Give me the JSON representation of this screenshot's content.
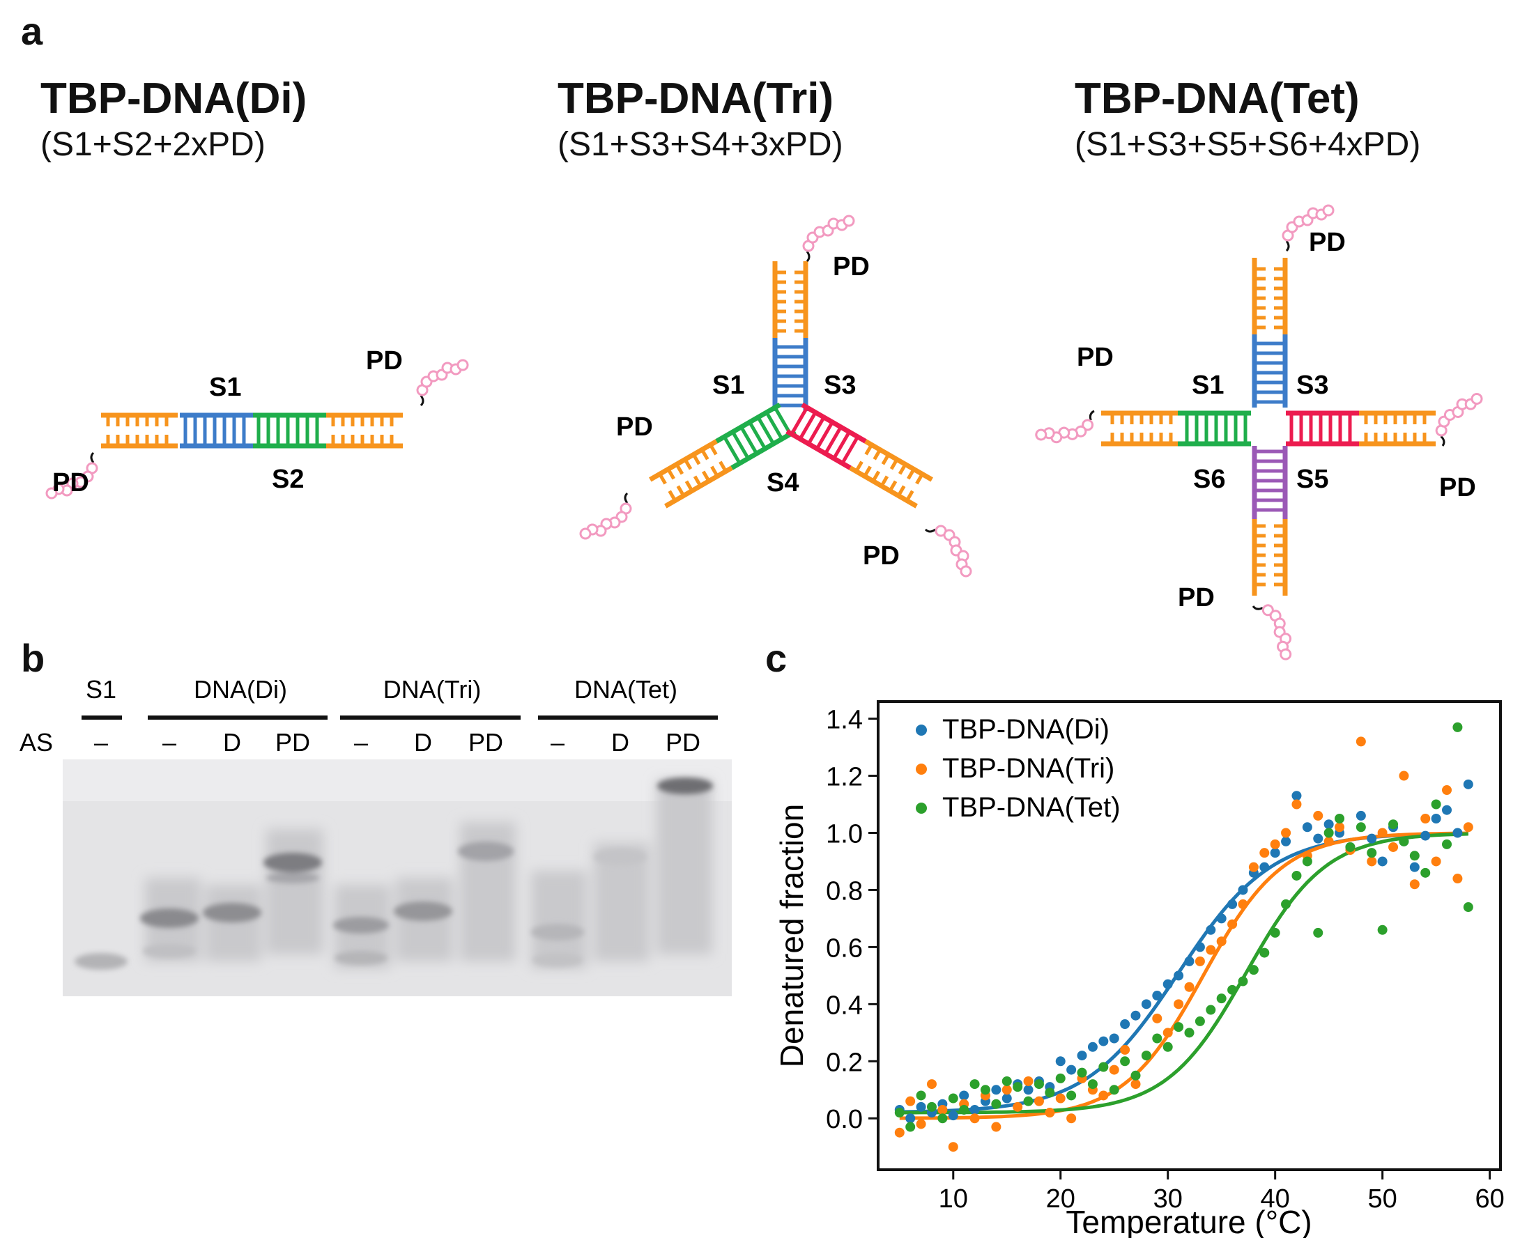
{
  "panel_a": {
    "letter": "a",
    "constructs": [
      {
        "title": "TBP-DNA(Di)",
        "subtitle": "(S1+S2+2xPD)",
        "labels": {
          "s1": "S1",
          "s2": "S2",
          "pd_top": "PD",
          "pd_bottom": "PD"
        }
      },
      {
        "title": "TBP-DNA(Tri)",
        "subtitle": "(S1+S3+S4+3xPD)",
        "labels": {
          "s1": "S1",
          "s3": "S3",
          "s4": "S4",
          "pd_top": "PD",
          "pd_left": "PD",
          "pd_right": "PD"
        }
      },
      {
        "title": "TBP-DNA(Tet)",
        "subtitle": "(S1+S3+S5+S6+4xPD)",
        "labels": {
          "s1": "S1",
          "s3": "S3",
          "s5": "S5",
          "s6": "S6",
          "pd_top": "PD",
          "pd_left": "PD",
          "pd_right": "PD",
          "pd_bottom": "PD"
        }
      }
    ]
  },
  "panel_b": {
    "letter": "b",
    "row_label": "AS",
    "groups": [
      {
        "name": "S1",
        "lanes": [
          "–"
        ]
      },
      {
        "name": "DNA(Di)",
        "lanes": [
          "–",
          "D",
          "PD"
        ]
      },
      {
        "name": "DNA(Tri)",
        "lanes": [
          "–",
          "D",
          "PD"
        ]
      },
      {
        "name": "DNA(Tet)",
        "lanes": [
          "–",
          "D",
          "PD"
        ]
      }
    ]
  },
  "panel_c": {
    "letter": "c"
  },
  "colors": {
    "orange": "#f7941d",
    "blue": "#3d7cc9",
    "green": "#1fae4b",
    "red": "#ec1c4f",
    "purple": "#9b59b6",
    "pink": "#f29ac0",
    "di": "#1f77b4",
    "tri": "#ff7f0e",
    "tet": "#2ca02c"
  },
  "chart_data": {
    "type": "scatter",
    "title": "",
    "xlabel": "Temperature (°C)",
    "ylabel": "Denatured fraction",
    "xlim": [
      3,
      61
    ],
    "ylim": [
      -0.18,
      1.46
    ],
    "xticks": [
      10,
      20,
      30,
      40,
      50,
      60
    ],
    "yticks": [
      0.0,
      0.2,
      0.4,
      0.6,
      0.8,
      1.0,
      1.2,
      1.4
    ],
    "ytick_labels": [
      "0.0",
      "0.2",
      "0.4",
      "0.6",
      "0.8",
      "1.0",
      "1.2",
      "1.4"
    ],
    "legend_position": "top-left",
    "series": [
      {
        "name": "TBP-DNA(Di)",
        "color": "#1f77b4",
        "fit": {
          "tm": 31.0,
          "k": 0.23,
          "base": 0.02,
          "top": 1.0
        },
        "x": [
          5,
          6,
          7,
          8,
          9,
          10,
          11,
          12,
          13,
          14,
          15,
          16,
          17,
          18,
          19,
          20,
          21,
          22,
          23,
          24,
          25,
          26,
          27,
          28,
          29,
          30,
          31,
          32,
          33,
          34,
          35,
          36,
          37,
          38,
          39,
          40,
          41,
          42,
          43,
          44,
          45,
          46,
          47,
          48,
          49,
          50,
          51,
          52,
          53,
          54,
          55,
          56,
          57,
          58
        ],
        "y": [
          0.03,
          0.0,
          0.04,
          0.02,
          0.05,
          0.01,
          0.08,
          0.03,
          0.06,
          0.1,
          0.07,
          0.12,
          0.1,
          0.13,
          0.11,
          0.2,
          0.17,
          0.22,
          0.25,
          0.27,
          0.28,
          0.33,
          0.36,
          0.4,
          0.43,
          0.47,
          0.5,
          0.55,
          0.6,
          0.66,
          0.7,
          0.75,
          0.8,
          0.86,
          0.88,
          0.93,
          0.97,
          1.13,
          1.02,
          0.98,
          1.03,
          1.0,
          0.95,
          1.06,
          0.98,
          0.9,
          1.02,
          0.97,
          0.88,
          0.99,
          1.05,
          1.08,
          1.0,
          1.17
        ]
      },
      {
        "name": "TBP-DNA(Tri)",
        "color": "#ff7f0e",
        "fit": {
          "tm": 33.3,
          "k": 0.27,
          "base": 0.0,
          "top": 1.0
        },
        "x": [
          5,
          6,
          7,
          8,
          9,
          10,
          11,
          12,
          13,
          14,
          15,
          16,
          17,
          18,
          19,
          20,
          21,
          22,
          23,
          24,
          25,
          26,
          27,
          28,
          29,
          30,
          31,
          32,
          33,
          34,
          35,
          36,
          37,
          38,
          39,
          40,
          41,
          42,
          43,
          44,
          45,
          46,
          47,
          48,
          49,
          50,
          51,
          52,
          53,
          54,
          55,
          56,
          57,
          58
        ],
        "y": [
          -0.05,
          0.06,
          -0.02,
          0.12,
          0.03,
          -0.1,
          0.05,
          0.0,
          0.08,
          -0.03,
          0.1,
          0.04,
          0.13,
          0.06,
          0.02,
          0.07,
          0.0,
          0.14,
          0.1,
          0.08,
          0.17,
          0.24,
          0.12,
          0.22,
          0.35,
          0.3,
          0.4,
          0.46,
          0.55,
          0.59,
          0.62,
          0.68,
          0.75,
          0.88,
          0.93,
          0.96,
          1.0,
          1.1,
          0.92,
          1.06,
          0.97,
          1.02,
          0.94,
          1.32,
          0.9,
          1.0,
          0.95,
          1.2,
          0.82,
          1.05,
          0.9,
          1.15,
          0.84,
          1.02
        ]
      },
      {
        "name": "TBP-DNA(Tet)",
        "color": "#2ca02c",
        "fit": {
          "tm": 37.3,
          "k": 0.27,
          "base": 0.02,
          "top": 1.0
        },
        "x": [
          5,
          6,
          7,
          8,
          9,
          10,
          11,
          12,
          13,
          14,
          15,
          16,
          17,
          18,
          19,
          20,
          21,
          22,
          23,
          24,
          25,
          26,
          27,
          28,
          29,
          30,
          31,
          32,
          33,
          34,
          35,
          36,
          37,
          38,
          39,
          40,
          41,
          42,
          43,
          44,
          45,
          46,
          47,
          48,
          49,
          50,
          51,
          52,
          53,
          54,
          55,
          56,
          57,
          58
        ],
        "y": [
          0.02,
          -0.03,
          0.08,
          0.04,
          0.0,
          0.07,
          0.03,
          0.12,
          0.1,
          0.05,
          0.13,
          0.11,
          0.06,
          0.12,
          0.09,
          0.14,
          0.08,
          0.16,
          0.12,
          0.18,
          0.1,
          0.2,
          0.15,
          0.22,
          0.28,
          0.25,
          0.32,
          0.3,
          0.34,
          0.38,
          0.42,
          0.45,
          0.48,
          0.52,
          0.58,
          0.65,
          0.75,
          0.85,
          0.9,
          0.65,
          1.0,
          1.05,
          0.95,
          1.02,
          0.93,
          0.66,
          1.03,
          0.97,
          0.92,
          0.86,
          1.1,
          0.96,
          1.37,
          0.74
        ]
      }
    ]
  }
}
